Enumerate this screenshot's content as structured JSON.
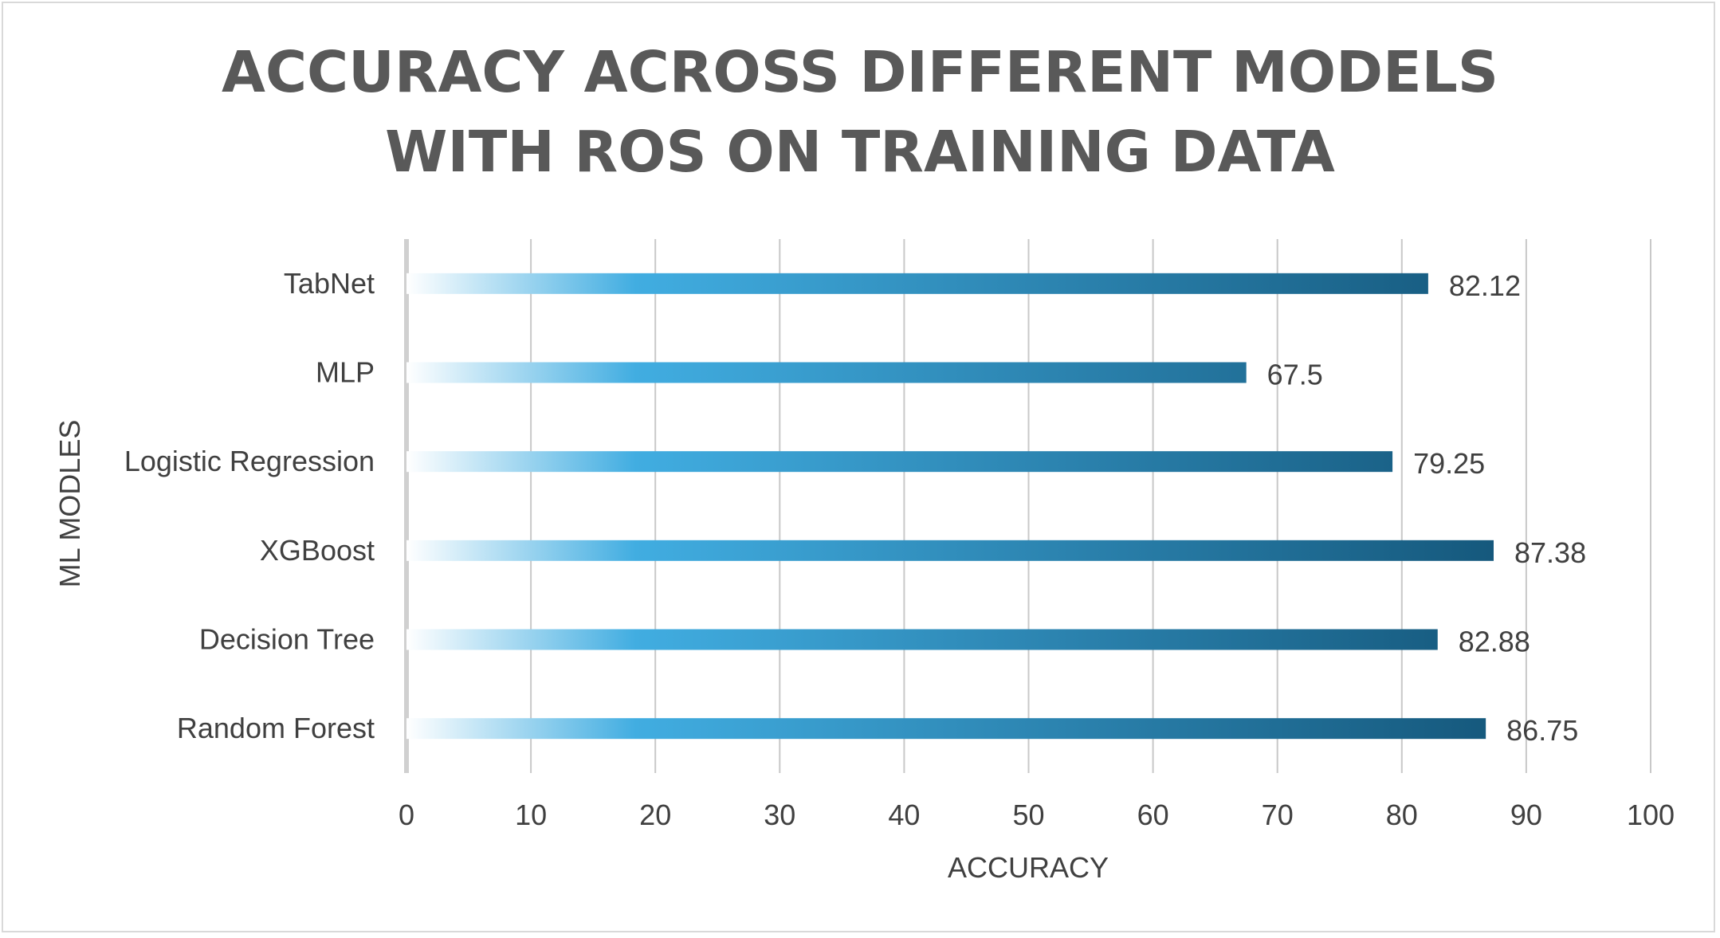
{
  "chart_data": {
    "type": "bar",
    "orientation": "horizontal",
    "title": [
      "ACCURACY ACROSS DIFFERENT MODELS",
      "WITH ROS ON TRAINING DATA"
    ],
    "xlabel": "ACCURACY",
    "ylabel": "ML MODLES",
    "categories": [
      "TabNet",
      "MLP",
      "Logistic Regression",
      "XGBoost",
      "Decision Tree",
      "Random Forest"
    ],
    "values": [
      82.12,
      67.5,
      79.25,
      87.38,
      82.88,
      86.75
    ],
    "data_labels": [
      "82.12",
      "67.5",
      "79.25",
      "87.38",
      "82.88",
      "86.75"
    ],
    "xlim": [
      0,
      100
    ],
    "xticks": [
      0,
      10,
      20,
      30,
      40,
      50,
      60,
      70,
      80,
      90,
      100
    ],
    "grid": true,
    "legend": "none",
    "colors": {
      "bar_start": "#ffffff",
      "bar_mid": "#41ade1",
      "bar_end": "#15587c",
      "grid": "#c8c8c8",
      "axis": "#d0d0d0",
      "text": "#404040",
      "title": "#595959"
    }
  }
}
